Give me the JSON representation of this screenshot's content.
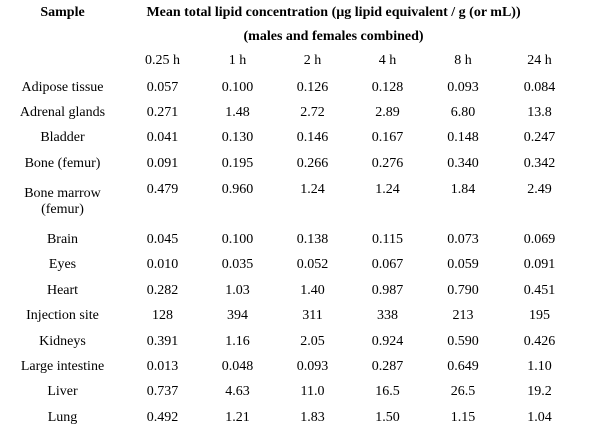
{
  "table": {
    "header": {
      "sample_label": "Sample",
      "title_line1": "Mean total lipid concentration (µg lipid equivalent / g (or mL))",
      "title_line2": "(males and females combined)",
      "time_columns": [
        "0.25 h",
        "1 h",
        "2 h",
        "4 h",
        "8 h",
        "24 h"
      ]
    },
    "rows": [
      {
        "label": "Adipose tissue",
        "values": [
          "0.057",
          "0.100",
          "0.126",
          "0.128",
          "0.093",
          "0.084"
        ]
      },
      {
        "label": "Adrenal glands",
        "values": [
          "0.271",
          "1.48",
          "2.72",
          "2.89",
          "6.80",
          "13.8"
        ]
      },
      {
        "label": "Bladder",
        "values": [
          "0.041",
          "0.130",
          "0.146",
          "0.167",
          "0.148",
          "0.247"
        ]
      },
      {
        "label": "Bone (femur)",
        "values": [
          "0.091",
          "0.195",
          "0.266",
          "0.276",
          "0.340",
          "0.342"
        ]
      },
      {
        "label": "Bone marrow",
        "label_line2": "(femur)",
        "values": [
          "0.479",
          "0.960",
          "1.24",
          "1.24",
          "1.84",
          "2.49"
        ]
      },
      {
        "label": "Brain",
        "values": [
          "0.045",
          "0.100",
          "0.138",
          "0.115",
          "0.073",
          "0.069"
        ]
      },
      {
        "label": "Eyes",
        "values": [
          "0.010",
          "0.035",
          "0.052",
          "0.067",
          "0.059",
          "0.091"
        ]
      },
      {
        "label": "Heart",
        "values": [
          "0.282",
          "1.03",
          "1.40",
          "0.987",
          "0.790",
          "0.451"
        ]
      },
      {
        "label": "Injection site",
        "values": [
          "128",
          "394",
          "311",
          "338",
          "213",
          "195"
        ]
      },
      {
        "label": "Kidneys",
        "values": [
          "0.391",
          "1.16",
          "2.05",
          "0.924",
          "0.590",
          "0.426"
        ]
      },
      {
        "label": "Large intestine",
        "values": [
          "0.013",
          "0.048",
          "0.093",
          "0.287",
          "0.649",
          "1.10"
        ]
      },
      {
        "label": "Liver",
        "values": [
          "0.737",
          "4.63",
          "11.0",
          "16.5",
          "26.5",
          "19.2"
        ]
      },
      {
        "label": "Lung",
        "values": [
          "0.492",
          "1.21",
          "1.83",
          "1.50",
          "1.15",
          "1.04"
        ]
      }
    ]
  }
}
